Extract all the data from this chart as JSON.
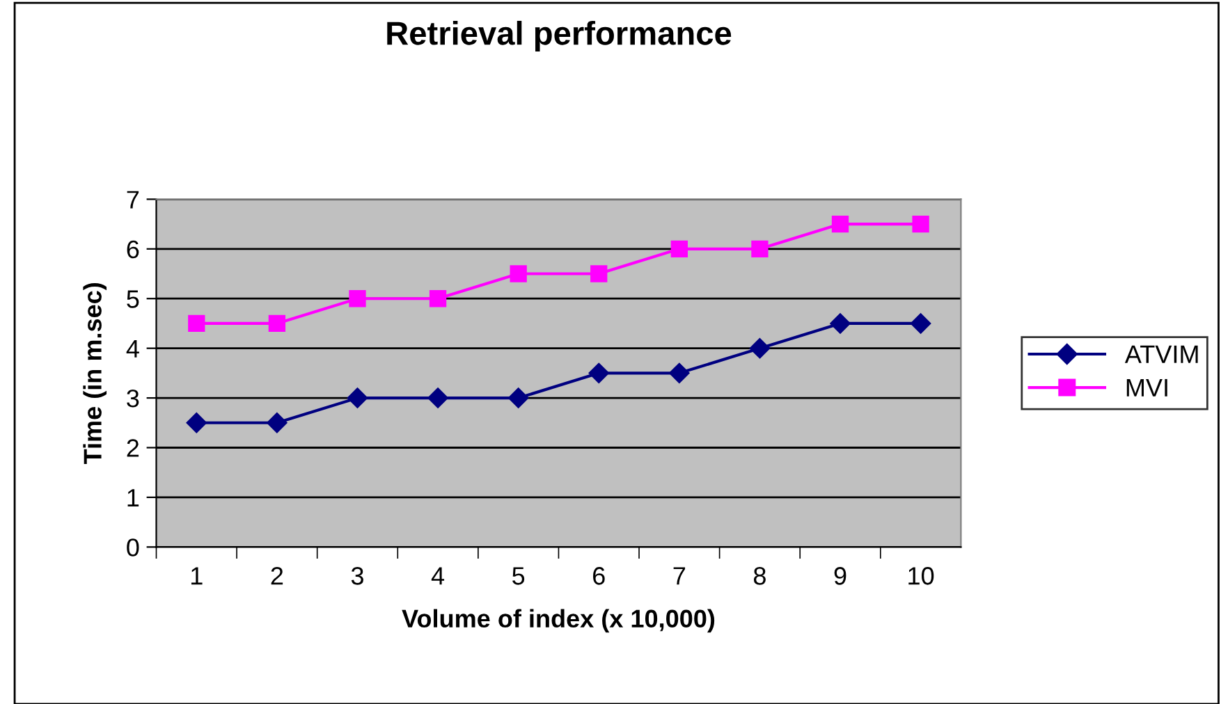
{
  "chart_data": {
    "type": "line",
    "title": "Retrieval performance",
    "xlabel": "Volume of index (x 10,000)",
    "ylabel": "Time (in m.sec)",
    "categories": [
      "1",
      "2",
      "3",
      "4",
      "5",
      "6",
      "7",
      "8",
      "9",
      "10"
    ],
    "series": [
      {
        "name": "ATVIM",
        "color": "#000080",
        "marker": "diamond",
        "values": [
          2.5,
          2.5,
          3,
          3,
          3,
          3.5,
          3.5,
          4,
          4.5,
          4.5
        ]
      },
      {
        "name": "MVI",
        "color": "#ff00ff",
        "marker": "square",
        "values": [
          4.5,
          4.5,
          5,
          5,
          5.5,
          5.5,
          6,
          6,
          6.5,
          6.5
        ]
      }
    ],
    "ylim": [
      0,
      7
    ],
    "yticks": [
      0,
      1,
      2,
      3,
      4,
      5,
      6,
      7
    ],
    "grid": "y",
    "legend": "right",
    "line_style": "solid"
  }
}
